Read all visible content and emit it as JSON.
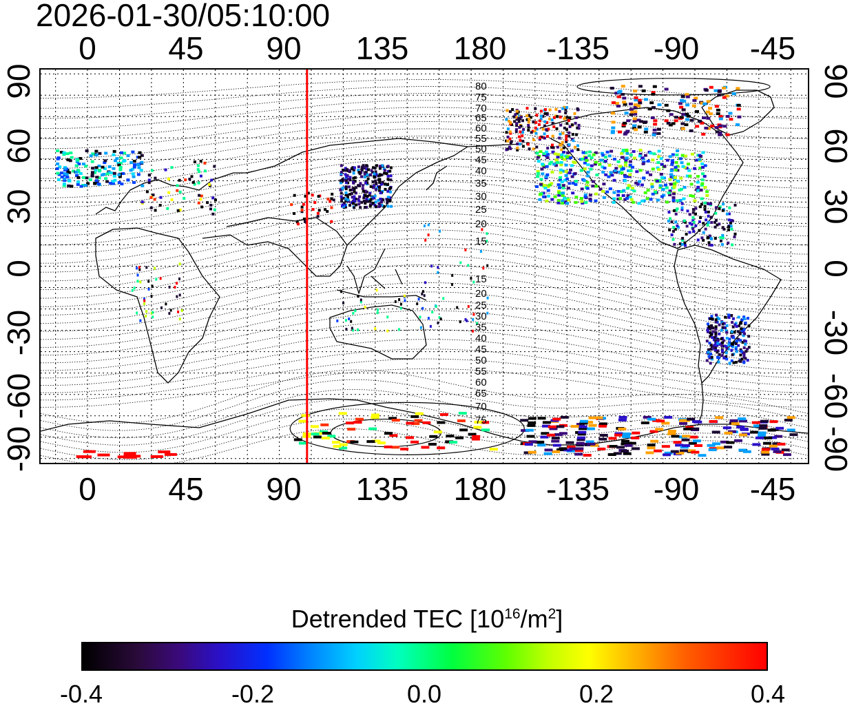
{
  "header": {
    "timestamp": "2026-01-30/05:10:00"
  },
  "axes": {
    "top_ticks": [
      "0",
      "45",
      "90",
      "135",
      "180",
      "-135",
      "-90",
      "-45"
    ],
    "bottom_ticks": [
      "0",
      "45",
      "90",
      "135",
      "180",
      "-135",
      "-90",
      "-45"
    ],
    "left_ticks": [
      "90",
      "60",
      "30",
      "0",
      "-30",
      "-60",
      "-90"
    ],
    "right_ticks": [
      "90",
      "60",
      "30",
      "0",
      "-30",
      "-60",
      "-90"
    ]
  },
  "map": {
    "lon_range": [
      -22,
      338
    ],
    "lat_range": [
      -92,
      92
    ],
    "graticule_lon_step": 15,
    "graticule_lat_step": 10,
    "terminator_lon": 103,
    "terminator_color": "#ff0000",
    "mlat_labels_north": [
      "80",
      "75",
      "70",
      "65",
      "60",
      "55",
      "50",
      "45",
      "40",
      "35",
      "30",
      "25",
      "20",
      "15"
    ],
    "mlat_labels_south": [
      "15",
      "20",
      "25",
      "30",
      "35",
      "40",
      "45",
      "50",
      "55",
      "60",
      "65",
      "70",
      "75"
    ]
  },
  "colorbar": {
    "title_prefix": "Detrended TEC  [10",
    "title_exp": "16",
    "title_mid": "/m",
    "title_exp2": "2",
    "title_suffix": "]",
    "range": [
      -0.4,
      0.4
    ],
    "ticks": [
      "-0.4",
      "-0.2",
      "0.0",
      "0.2",
      "0.4"
    ]
  }
}
